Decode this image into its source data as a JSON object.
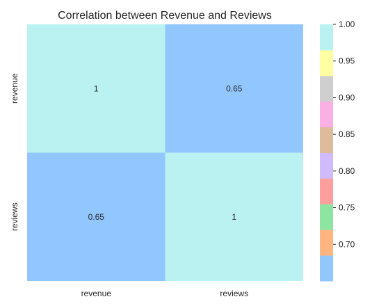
{
  "chart_data": {
    "type": "heatmap",
    "title": "Correlation between Revenue and Reviews",
    "x_labels": [
      "revenue",
      "reviews"
    ],
    "y_labels": [
      "revenue",
      "reviews"
    ],
    "values": [
      [
        1,
        0.65
      ],
      [
        0.65,
        1
      ]
    ],
    "annotations": [
      [
        "1",
        "0.65"
      ],
      [
        "0.65",
        "1"
      ]
    ],
    "colorbar": {
      "range": [
        0.65,
        1.0
      ],
      "ticks": [
        0.7,
        0.75,
        0.8,
        0.85,
        0.9,
        0.95,
        1.0
      ],
      "tick_labels": [
        "0.70",
        "0.75",
        "0.80",
        "0.85",
        "0.90",
        "0.95",
        "1.00"
      ],
      "colors": [
        "#92c6ff",
        "#ffb482",
        "#8de5a1",
        "#ff9f9b",
        "#d0bbff",
        "#debb9b",
        "#fab0e4",
        "#cfcfcf",
        "#fffea3",
        "#b9f2f0"
      ]
    },
    "legend": "right",
    "grid": false
  }
}
